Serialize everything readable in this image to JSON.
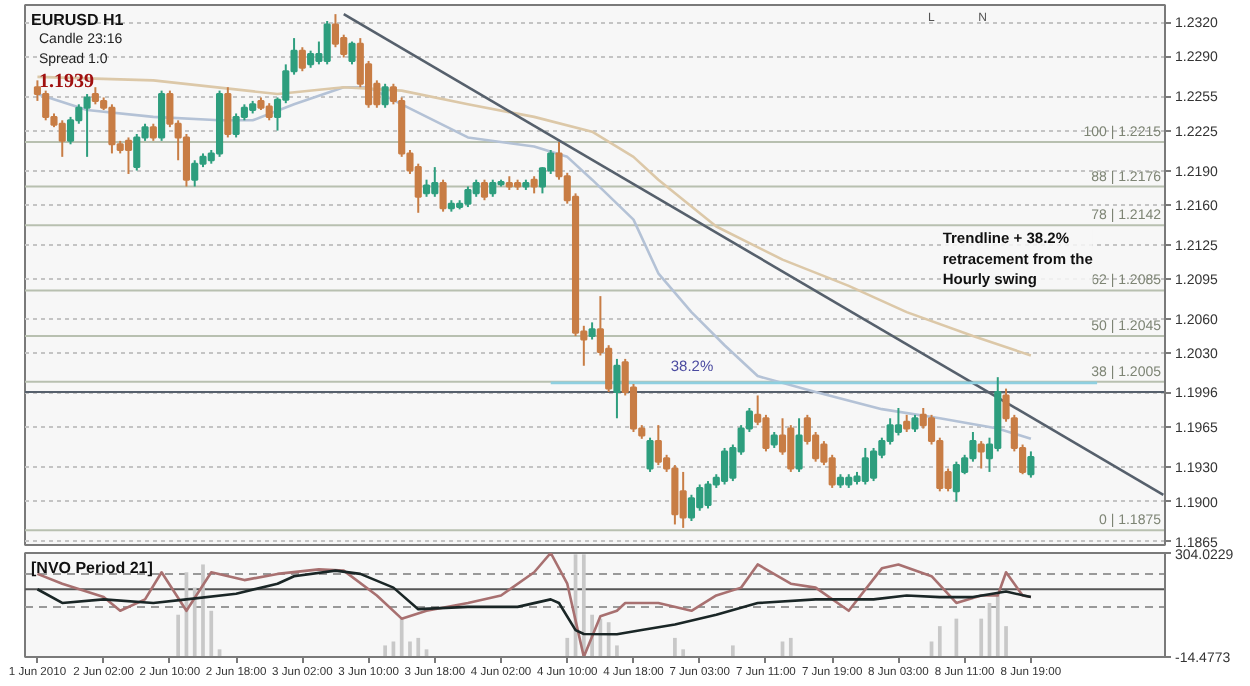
{
  "chart_data": [
    {
      "type": "candlestick",
      "title": "EURUSD H1",
      "annotations": [
        "Candle 23:16",
        "Spread 1.0",
        "1.1939",
        "L",
        "N",
        "Trendline + 38.2% retracement from the Hourly swing"
      ],
      "categories": [
        null,
        null,
        null,
        null,
        null,
        null,
        null,
        null,
        null,
        null,
        null,
        null,
        null,
        null,
        null,
        null,
        null,
        null,
        null,
        null,
        null,
        null,
        null,
        null,
        null,
        null,
        null,
        null,
        null,
        null,
        null,
        null,
        null,
        null,
        null,
        null,
        null,
        null,
        null,
        null,
        null,
        null,
        null,
        null,
        null,
        null,
        null,
        null,
        null,
        null,
        null,
        null,
        null,
        null,
        null,
        null,
        null,
        null,
        null,
        null,
        null,
        null,
        null,
        null,
        null,
        null,
        null,
        null,
        null,
        null,
        null,
        null,
        null,
        null,
        null,
        null,
        null,
        null,
        null,
        null,
        null,
        null,
        null,
        null,
        null,
        null,
        null,
        null,
        null,
        null,
        null,
        null,
        null,
        null,
        null,
        null,
        null,
        null,
        null,
        null,
        null,
        null,
        null,
        null,
        null,
        null,
        null,
        null,
        null,
        null,
        null,
        null,
        null,
        null,
        null,
        null,
        null,
        null,
        null,
        null,
        null,
        null,
        null,
        null,
        null,
        null,
        null,
        null,
        null,
        null,
        null,
        null,
        null,
        null,
        null,
        null,
        null
      ],
      "ohlc": [
        [
          1.2263,
          1.2269,
          1.2251,
          1.2257
        ],
        [
          1.2257,
          1.226,
          1.2234,
          1.2237
        ],
        [
          1.2237,
          1.224,
          1.2228,
          1.223
        ],
        [
          1.2231,
          1.2234,
          1.2202,
          1.2216
        ],
        [
          1.2216,
          1.2237,
          1.2213,
          1.2234
        ],
        [
          1.2234,
          1.2248,
          1.2231,
          1.2245
        ],
        [
          1.2245,
          1.2257,
          1.2202,
          1.2254
        ],
        [
          1.2257,
          1.2263,
          1.2248,
          1.2251
        ],
        [
          1.2251,
          1.2254,
          1.2243,
          1.2245
        ],
        [
          1.2245,
          1.2248,
          1.2205,
          1.2213
        ],
        [
          1.2213,
          1.2216,
          1.2205,
          1.2208
        ],
        [
          1.2216,
          1.2219,
          1.2187,
          1.2208
        ],
        [
          1.2193,
          1.2222,
          1.219,
          1.2219
        ],
        [
          1.2219,
          1.2231,
          1.2216,
          1.2228
        ],
        [
          1.2228,
          1.2231,
          1.2216,
          1.2219
        ],
        [
          1.2219,
          1.226,
          1.2216,
          1.2257
        ],
        [
          1.2257,
          1.226,
          1.2228,
          1.2231
        ],
        [
          1.2231,
          1.2234,
          1.2199,
          1.2219
        ],
        [
          1.2219,
          1.2222,
          1.2176,
          1.2182
        ],
        [
          1.2182,
          1.2199,
          1.2176,
          1.2196
        ],
        [
          1.2196,
          1.2205,
          1.2193,
          1.2202
        ],
        [
          1.2199,
          1.2208,
          1.2196,
          1.2205
        ],
        [
          1.2205,
          1.226,
          1.2202,
          1.2257
        ],
        [
          1.2257,
          1.2263,
          1.2219,
          1.2222
        ],
        [
          1.2222,
          1.224,
          1.2219,
          1.2237
        ],
        [
          1.2237,
          1.2248,
          1.2234,
          1.2245
        ],
        [
          1.2243,
          1.2251,
          1.224,
          1.2248
        ],
        [
          1.2251,
          1.2254,
          1.2243,
          1.2245
        ],
        [
          1.2246,
          1.2249,
          1.2234,
          1.2237
        ],
        [
          1.2237,
          1.2254,
          1.2225,
          1.2252
        ],
        [
          1.2252,
          1.2283,
          1.2249,
          1.2277
        ],
        [
          1.2277,
          1.2306,
          1.2274,
          1.2295
        ],
        [
          1.2295,
          1.2298,
          1.2277,
          1.228
        ],
        [
          1.2283,
          1.2295,
          1.228,
          1.2292
        ],
        [
          1.2286,
          1.2303,
          1.2283,
          1.2292
        ],
        [
          1.2286,
          1.2321,
          1.2283,
          1.2318
        ],
        [
          1.2318,
          1.2327,
          1.2298,
          1.2301
        ],
        [
          1.2306,
          1.2309,
          1.2289,
          1.2292
        ],
        [
          1.2286,
          1.2303,
          1.2283,
          1.2301
        ],
        [
          1.2301,
          1.2306,
          1.2263,
          1.2266
        ],
        [
          1.2283,
          1.2286,
          1.2245,
          1.2248
        ],
        [
          1.2266,
          1.2269,
          1.2245,
          1.2248
        ],
        [
          1.2248,
          1.2266,
          1.2245,
          1.2263
        ],
        [
          1.2263,
          1.2266,
          1.2248,
          1.2251
        ],
        [
          1.2251,
          1.2254,
          1.2202,
          1.2205
        ],
        [
          1.2205,
          1.2208,
          1.2187,
          1.219
        ],
        [
          1.2193,
          1.2196,
          1.2153,
          1.2167
        ],
        [
          1.217,
          1.2182,
          1.2167,
          1.2177
        ],
        [
          1.217,
          1.2193,
          1.2167,
          1.2179
        ],
        [
          1.2179,
          1.2182,
          1.2154,
          1.2157
        ],
        [
          1.2157,
          1.2164,
          1.2154,
          1.2161
        ],
        [
          1.2158,
          1.2164,
          1.2156,
          1.2161
        ],
        [
          1.2161,
          1.2176,
          1.2158,
          1.2173
        ],
        [
          1.217,
          1.2182,
          1.2167,
          1.2179
        ],
        [
          1.2179,
          1.2182,
          1.2164,
          1.2167
        ],
        [
          1.217,
          1.2182,
          1.2167,
          1.2179
        ],
        [
          1.2178,
          1.2182,
          1.2176,
          1.218
        ],
        [
          1.2179,
          1.2185,
          1.2173,
          1.2176
        ],
        [
          1.2179,
          1.2182,
          1.2173,
          1.2176
        ],
        [
          1.2176,
          1.2182,
          1.2173,
          1.2179
        ],
        [
          1.2182,
          1.2185,
          1.217,
          1.2176
        ],
        [
          1.2176,
          1.2193,
          1.217,
          1.2192
        ],
        [
          1.219,
          1.2208,
          1.2187,
          1.2205
        ],
        [
          1.2205,
          1.2215,
          1.2182,
          1.2185
        ],
        [
          1.2185,
          1.2188,
          1.2161,
          1.2164
        ],
        [
          1.2167,
          1.217,
          1.2045,
          1.2048
        ],
        [
          1.2049,
          1.2054,
          1.2019,
          1.2042
        ],
        [
          1.2045,
          1.2057,
          1.2042,
          1.2051
        ],
        [
          1.2051,
          1.208,
          1.2028,
          1.2031
        ],
        [
          1.2034,
          1.2037,
          1.1996,
          1.1999
        ],
        [
          1.1996,
          1.2025,
          1.1973,
          1.2019
        ],
        [
          1.2022,
          1.2025,
          1.1993,
          1.1996
        ],
        [
          1.2,
          1.2003,
          1.1961,
          1.1964
        ],
        [
          1.1964,
          1.1967,
          1.1955,
          1.1958
        ],
        [
          1.1929,
          1.1956,
          1.1926,
          1.1953
        ],
        [
          1.1953,
          1.1967,
          1.1932,
          1.1935
        ],
        [
          1.1938,
          1.1941,
          1.1926,
          1.1929
        ],
        [
          1.1929,
          1.1932,
          1.188,
          1.1889
        ],
        [
          1.1909,
          1.1926,
          1.1877,
          1.1886
        ],
        [
          1.1886,
          1.1906,
          1.1883,
          1.1903
        ],
        [
          1.1895,
          1.1915,
          1.1892,
          1.1912
        ],
        [
          1.1897,
          1.1918,
          1.1894,
          1.1915
        ],
        [
          1.1915,
          1.1924,
          1.1912,
          1.1921
        ],
        [
          1.1918,
          1.1947,
          1.1915,
          1.1944
        ],
        [
          1.1921,
          1.195,
          1.1918,
          1.1947
        ],
        [
          1.1944,
          1.1967,
          1.1941,
          1.1964
        ],
        [
          1.1964,
          1.1982,
          1.1961,
          1.1979
        ],
        [
          1.1976,
          1.1993,
          1.1967,
          1.197
        ],
        [
          1.1973,
          1.1976,
          1.1944,
          1.1947
        ],
        [
          1.195,
          1.1961,
          1.1947,
          1.1958
        ],
        [
          1.1958,
          1.1973,
          1.1941,
          1.1944
        ],
        [
          1.1964,
          1.1967,
          1.1926,
          1.1929
        ],
        [
          1.1929,
          1.1973,
          1.1926,
          1.1958
        ],
        [
          1.1973,
          1.1976,
          1.195,
          1.1953
        ],
        [
          1.1958,
          1.1961,
          1.1935,
          1.1938
        ],
        [
          1.195,
          1.1953,
          1.1932,
          1.1935
        ],
        [
          1.1938,
          1.1941,
          1.1912,
          1.1915
        ],
        [
          1.1915,
          1.1924,
          1.1912,
          1.1921
        ],
        [
          1.1915,
          1.1924,
          1.1912,
          1.1921
        ],
        [
          1.1918,
          1.1926,
          1.1915,
          1.1922
        ],
        [
          1.1918,
          1.1947,
          1.1915,
          1.1938
        ],
        [
          1.1921,
          1.1947,
          1.1918,
          1.1944
        ],
        [
          1.1941,
          1.1956,
          1.1938,
          1.1953
        ],
        [
          1.1953,
          1.1973,
          1.195,
          1.1967
        ],
        [
          1.1961,
          1.1982,
          1.1958,
          1.1967
        ],
        [
          1.197,
          1.1976,
          1.1961,
          1.1964
        ],
        [
          1.1964,
          1.1976,
          1.1961,
          1.1973
        ],
        [
          1.1976,
          1.1982,
          1.1964,
          1.1967
        ],
        [
          1.1973,
          1.1976,
          1.195,
          1.1953
        ],
        [
          1.1953,
          1.1956,
          1.1909,
          1.1912
        ],
        [
          1.1926,
          1.1929,
          1.1909,
          1.1912
        ],
        [
          1.1909,
          1.1935,
          1.19,
          1.1932
        ],
        [
          1.1926,
          1.1941,
          1.1924,
          1.1938
        ],
        [
          1.1938,
          1.1961,
          1.1935,
          1.1953
        ],
        [
          1.195,
          1.1953,
          1.1929,
          1.1944
        ],
        [
          1.1938,
          1.1956,
          1.1926,
          1.195
        ],
        [
          1.1947,
          1.2009,
          1.1944,
          1.1996
        ],
        [
          1.1993,
          1.1999,
          1.197,
          1.1973
        ],
        [
          1.1973,
          1.1976,
          1.1944,
          1.1947
        ],
        [
          1.1947,
          1.195,
          1.1924,
          1.1926
        ],
        [
          1.1924,
          1.1944,
          1.1921,
          1.1939
        ],
        null,
        null,
        null,
        null,
        null,
        null,
        null,
        null,
        null,
        null,
        null,
        null,
        null,
        null,
        null,
        null
      ],
      "colors": [
        "#c87d45",
        "#c87d45",
        "#c87d45",
        "#c87d45",
        "#2e9e7e",
        "#2e9e7e",
        "#2e9e7e",
        "#c87d45",
        "#c87d45",
        "#c87d45",
        "#c87d45",
        "#c87d45",
        "#2e9e7e",
        "#2e9e7e",
        "#c87d45",
        "#2e9e7e",
        "#c87d45",
        "#c87d45",
        "#c87d45",
        "#2e9e7e",
        "#2e9e7e",
        "#2e9e7e",
        "#2e9e7e",
        "#c87d45",
        "#2e9e7e",
        "#2e9e7e",
        "#2e9e7e",
        "#c87d45",
        "#c87d45",
        "#2e9e7e",
        "#2e9e7e",
        "#2e9e7e",
        "#c87d45",
        "#2e9e7e",
        "#2e9e7e",
        "#2e9e7e",
        "#c87d45",
        "#c87d45",
        "#2e9e7e",
        "#c87d45",
        "#c87d45",
        "#c87d45",
        "#2e9e7e",
        "#c87d45",
        "#c87d45",
        "#c87d45",
        "#c87d45",
        "#2e9e7e",
        "#2e9e7e",
        "#c87d45",
        "#2e9e7e",
        "#2e9e7e",
        "#2e9e7e",
        "#2e9e7e",
        "#c87d45",
        "#2e9e7e",
        "#2e9e7e",
        "#c87d45",
        "#c87d45",
        "#2e9e7e",
        "#c87d45",
        "#2e9e7e",
        "#2e9e7e",
        "#c87d45",
        "#c87d45",
        "#c87d45",
        "#c87d45",
        "#2e9e7e",
        "#c87d45",
        "#c87d45",
        "#2e9e7e",
        "#c87d45",
        "#c87d45",
        "#c87d45",
        "#2e9e7e",
        "#c87d45",
        "#c87d45",
        "#c87d45",
        "#c87d45",
        "#2e9e7e",
        "#2e9e7e",
        "#2e9e7e",
        "#2e9e7e",
        "#2e9e7e",
        "#2e9e7e",
        "#2e9e7e",
        "#2e9e7e",
        "#c87d45",
        "#c87d45",
        "#2e9e7e",
        "#c87d45",
        "#c87d45",
        "#2e9e7e",
        "#c87d45",
        "#c87d45",
        "#c87d45",
        "#c87d45",
        "#2e9e7e",
        "#2e9e7e",
        "#2e9e7e",
        "#2e9e7e",
        "#2e9e7e",
        "#2e9e7e",
        "#2e9e7e",
        "#2e9e7e",
        "#c87d45",
        "#2e9e7e",
        "#c87d45",
        "#c87d45",
        "#c87d45",
        "#c87d45",
        "#2e9e7e",
        "#2e9e7e",
        "#2e9e7e",
        "#c87d45",
        "#2e9e7e",
        "#2e9e7e",
        "#c87d45",
        "#c87d45",
        "#c87d45",
        "#2e9e7e",
        null,
        null,
        null,
        null,
        null,
        null,
        null,
        null,
        null,
        null,
        null,
        null,
        null,
        null,
        null,
        null
      ],
      "series": [
        {
          "type": "line",
          "color": "#b4c2d6",
          "values": [
            1.2257,
            null,
            null,
            null,
            null,
            null,
            1.2243,
            null,
            null,
            null,
            null,
            null,
            null,
            null,
            1.2237,
            null,
            null,
            null,
            null,
            null,
            null,
            null,
            1.2234,
            null,
            null,
            null,
            1.2234,
            null,
            null,
            null,
            null,
            1.2248,
            null,
            null,
            null,
            null,
            null,
            1.2263,
            null,
            null,
            1.2263,
            null,
            null,
            null,
            1.2248,
            null,
            null,
            null,
            null,
            null,
            null,
            null,
            1.2219,
            null,
            null,
            null,
            null,
            null,
            null,
            null,
            1.2211,
            null,
            null,
            null,
            1.2202,
            null,
            null,
            1.2182,
            null,
            null,
            null,
            null,
            1.2147,
            null,
            null,
            1.21,
            null,
            null,
            null,
            1.2066,
            null,
            null,
            null,
            1.2037,
            null,
            null,
            null,
            1.201,
            null,
            null,
            null,
            null,
            null,
            null,
            1.1996,
            null,
            null,
            null,
            null,
            null,
            null,
            null,
            1.1981,
            null,
            null,
            null,
            null,
            null,
            null,
            1.1973,
            null,
            null,
            null,
            null,
            null,
            null,
            1.1964,
            null,
            null,
            null,
            1.1955,
            null,
            null,
            null,
            null,
            null,
            null,
            null,
            null,
            null,
            null,
            null,
            null,
            null,
            null,
            null,
            null
          ]
        },
        {
          "type": "line",
          "color": "#dcc8a8",
          "values": [
            1.2272,
            null,
            null,
            null,
            null,
            null,
            null,
            null,
            null,
            null,
            null,
            null,
            null,
            null,
            1.2269,
            null,
            null,
            null,
            null,
            null,
            null,
            null,
            null,
            null,
            null,
            null,
            null,
            null,
            null,
            1.2257,
            null,
            null,
            null,
            null,
            null,
            null,
            null,
            1.2263,
            null,
            null,
            null,
            null,
            null,
            null,
            1.226,
            null,
            null,
            null,
            null,
            null,
            null,
            null,
            1.2248,
            null,
            null,
            null,
            null,
            null,
            null,
            null,
            1.2237,
            null,
            null,
            null,
            null,
            null,
            null,
            1.2224,
            null,
            null,
            null,
            null,
            1.2202,
            null,
            null,
            1.2182,
            null,
            null,
            null,
            null,
            null,
            null,
            1.2141,
            null,
            null,
            null,
            null,
            null,
            null,
            null,
            1.2112,
            null,
            null,
            null,
            null,
            null,
            null,
            null,
            1.2089,
            null,
            null,
            null,
            null,
            null,
            null,
            1.2066,
            null,
            null,
            null,
            null,
            null,
            null,
            null,
            1.2045,
            null,
            null,
            null,
            null,
            null,
            null,
            1.2028,
            null,
            null,
            null,
            null,
            null,
            null,
            null,
            null,
            null,
            null,
            null,
            null,
            null,
            null,
            null,
            null
          ]
        },
        {
          "type": "line",
          "color": "#56606c",
          "values": [
            null,
            null,
            null,
            null,
            null,
            null,
            null,
            null,
            null,
            null,
            null,
            null,
            null,
            null,
            null,
            null,
            null,
            null,
            null,
            null,
            null,
            null,
            null,
            null,
            null,
            null,
            null,
            null,
            null,
            null,
            null,
            null,
            null,
            null,
            null,
            null,
            null,
            1.2327,
            null,
            null,
            null,
            null,
            null,
            null,
            null,
            null,
            null,
            null,
            null,
            null,
            null,
            null,
            null,
            null,
            null,
            null,
            null,
            null,
            null,
            null,
            null,
            null,
            null,
            null,
            null,
            null,
            null,
            null,
            null,
            null,
            null,
            null,
            null,
            null,
            null,
            null,
            null,
            null,
            null,
            null,
            null,
            null,
            null,
            null,
            null,
            null,
            null,
            null,
            null,
            null,
            null,
            null,
            null,
            null,
            null,
            null,
            null,
            null,
            null,
            null,
            null,
            null,
            null,
            null,
            null,
            null,
            null,
            null,
            null,
            null,
            null,
            null,
            null,
            null,
            null,
            null,
            null,
            null,
            null,
            null,
            null,
            null,
            null,
            null,
            null,
            null,
            null,
            null,
            null,
            null,
            null,
            null,
            null,
            null,
            null,
            null,
            1.1906
          ]
        },
        {
          "type": "line",
          "name": "38.2%",
          "color": "#8ecfe0",
          "values": [
            null,
            null,
            null,
            null,
            null,
            null,
            null,
            null,
            null,
            null,
            null,
            null,
            null,
            null,
            null,
            null,
            null,
            null,
            null,
            null,
            null,
            null,
            null,
            null,
            null,
            null,
            null,
            null,
            null,
            null,
            null,
            null,
            null,
            null,
            null,
            null,
            null,
            null,
            null,
            null,
            null,
            null,
            null,
            null,
            null,
            null,
            null,
            null,
            null,
            null,
            null,
            null,
            null,
            null,
            null,
            null,
            null,
            null,
            null,
            null,
            null,
            null,
            1.2004,
            null,
            null,
            null,
            null,
            null,
            null,
            null,
            null,
            null,
            null,
            null,
            null,
            null,
            null,
            null,
            null,
            null,
            null,
            null,
            null,
            null,
            null,
            null,
            null,
            null,
            null,
            null,
            null,
            null,
            null,
            null,
            null,
            null,
            null,
            null,
            null,
            null,
            null,
            null,
            null,
            null,
            null,
            null,
            null,
            null,
            null,
            null,
            null,
            null,
            null,
            null,
            null,
            null,
            null,
            null,
            null,
            null,
            null,
            null,
            null,
            null,
            null,
            null,
            null,
            null,
            1.2004,
            null,
            null,
            null,
            null,
            null,
            null,
            null,
            null
          ]
        }
      ],
      "ref_lines": [
        {
          "axis": "y",
          "value": 1.2215,
          "label": "100 | 1.2215",
          "color": "#b8c0b0"
        },
        {
          "axis": "y",
          "value": 1.2176,
          "label": "88 | 1.2176",
          "color": "#b8c0b0"
        },
        {
          "axis": "y",
          "value": 1.2142,
          "label": "78 | 1.2142",
          "color": "#b8c0b0"
        },
        {
          "axis": "y",
          "value": 1.2085,
          "label": "62 | 1.2085",
          "color": "#b8c0b0"
        },
        {
          "axis": "y",
          "value": 1.2045,
          "label": "50 | 1.2045",
          "color": "#b8c0b0"
        },
        {
          "axis": "y",
          "value": 1.2005,
          "label": "38 | 1.2005",
          "color": "#b8c0b0"
        },
        {
          "axis": "y",
          "value": 1.1875,
          "label": "0 | 1.1875",
          "color": "#b8c0b0"
        },
        {
          "axis": "y",
          "value": 1.1996,
          "color": "#56606c",
          "line_style": "solid"
        }
      ],
      "ylim": [
        1.1862,
        1.2335
      ],
      "yticks": [
        {
          "value": 1.232,
          "label": "1.2320"
        },
        {
          "value": 1.229,
          "label": "1.2290"
        },
        1.2255,
        1.2225,
        {
          "value": 1.219,
          "label": "1.2190"
        },
        {
          "value": 1.216,
          "label": "1.2160"
        },
        1.2125,
        1.2095,
        {
          "value": 1.206,
          "label": "1.2060"
        },
        {
          "value": 1.203,
          "label": "1.2030"
        },
        1.1996,
        1.1965,
        {
          "value": 1.193,
          "label": "1.1930"
        },
        {
          "value": 1.19,
          "label": "1.1900"
        },
        1.1865
      ],
      "grid": "y",
      "tick_labels": "y"
    },
    {
      "type": "line",
      "title": "[NVO Period 21]",
      "categories": [
        "1 Jun 2010",
        null,
        null,
        null,
        null,
        null,
        null,
        null,
        "2 Jun 02:00",
        null,
        null,
        null,
        null,
        null,
        null,
        null,
        "2 Jun 10:00",
        null,
        null,
        null,
        null,
        null,
        null,
        null,
        "2 Jun 18:00",
        null,
        null,
        null,
        null,
        null,
        null,
        null,
        "3 Jun 02:00",
        null,
        null,
        null,
        null,
        null,
        null,
        null,
        "3 Jun 10:00",
        null,
        null,
        null,
        null,
        null,
        null,
        null,
        "3 Jun 18:00",
        null,
        null,
        null,
        null,
        null,
        null,
        null,
        "4 Jun 02:00",
        null,
        null,
        null,
        null,
        null,
        null,
        null,
        "4 Jun 10:00",
        null,
        null,
        null,
        null,
        null,
        null,
        null,
        "4 Jun 18:00",
        null,
        null,
        null,
        null,
        null,
        null,
        null,
        "7 Jun 03:00",
        null,
        null,
        null,
        null,
        null,
        null,
        null,
        "7 Jun 11:00",
        null,
        null,
        null,
        null,
        null,
        null,
        null,
        "7 Jun 19:00",
        null,
        null,
        null,
        null,
        null,
        null,
        null,
        "8 Jun 03:00",
        null,
        null,
        null,
        null,
        null,
        null,
        null,
        "8 Jun 11:00",
        null,
        null,
        null,
        null,
        null,
        null,
        null,
        "8 Jun 19:00",
        null,
        null,
        null,
        null,
        null,
        null,
        null,
        null,
        null,
        null,
        null,
        null,
        null,
        null,
        null,
        null
      ],
      "series": [
        {
          "type": "bar",
          "color": "#c8c8c8",
          "values": [
            null,
            null,
            null,
            null,
            null,
            null,
            null,
            null,
            null,
            null,
            null,
            null,
            null,
            null,
            null,
            null,
            null,
            115,
            245,
            198,
            269,
            127,
            9,
            null,
            null,
            null,
            null,
            null,
            null,
            null,
            null,
            null,
            null,
            null,
            null,
            null,
            null,
            null,
            null,
            null,
            null,
            null,
            21,
            33,
            103,
            33,
            44,
            9,
            null,
            null,
            null,
            null,
            null,
            null,
            null,
            null,
            null,
            null,
            null,
            null,
            null,
            null,
            null,
            null,
            44,
            300,
            300,
            115,
            103,
            92,
            21,
            null,
            null,
            null,
            null,
            null,
            null,
            44,
            9,
            null,
            null,
            null,
            null,
            null,
            21,
            null,
            null,
            null,
            null,
            null,
            33,
            44,
            null,
            null,
            null,
            null,
            null,
            null,
            null,
            null,
            null,
            null,
            null,
            null,
            null,
            null,
            null,
            null,
            33,
            80,
            null,
            103,
            null,
            null,
            103,
            151,
            174,
            80,
            null,
            null,
            null,
            null,
            null,
            null,
            null,
            null,
            null,
            null,
            null,
            null,
            null,
            null,
            null,
            null,
            null,
            null,
            null
          ]
        },
        {
          "type": "line",
          "color": "#a87070",
          "values": [
            240,
            null,
            null,
            210,
            null,
            null,
            null,
            null,
            169,
            null,
            127,
            null,
            null,
            162,
            null,
            245,
            null,
            null,
            127,
            null,
            null,
            245,
            null,
            null,
            null,
            221,
            null,
            null,
            null,
            240,
            null,
            null,
            null,
            null,
            254,
            null,
            null,
            250,
            null,
            null,
            null,
            174,
            null,
            null,
            103,
            null,
            null,
            127,
            null,
            null,
            null,
            null,
            151,
            null,
            null,
            null,
            174,
            null,
            null,
            null,
            245,
            null,
            304,
            null,
            210,
            null,
            -14,
            null,
            110,
            null,
            127,
            151,
            null,
            null,
            null,
            151,
            null,
            null,
            null,
            127,
            null,
            null,
            174,
            null,
            null,
            198,
            null,
            269,
            null,
            null,
            null,
            210,
            null,
            null,
            198,
            null,
            null,
            null,
            127,
            null,
            null,
            null,
            257,
            null,
            269,
            null,
            null,
            null,
            233,
            null,
            null,
            151,
            null,
            null,
            174,
            null,
            174,
            245,
            null,
            174,
            169,
            null,
            null,
            null,
            null,
            null,
            null,
            null,
            null,
            null,
            null,
            null,
            null,
            null,
            null,
            null,
            null
          ]
        },
        {
          "type": "line",
          "color": "#1a2626",
          "values": [
            193,
            null,
            null,
            151,
            null,
            null,
            null,
            null,
            162,
            null,
            null,
            null,
            null,
            null,
            151,
            null,
            null,
            null,
            162,
            null,
            null,
            null,
            null,
            null,
            179,
            null,
            null,
            null,
            null,
            210,
            null,
            233,
            null,
            null,
            null,
            null,
            250,
            null,
            null,
            240,
            null,
            null,
            null,
            198,
            null,
            null,
            132,
            null,
            null,
            null,
            null,
            null,
            139,
            null,
            null,
            null,
            null,
            null,
            139,
            null,
            null,
            null,
            162,
            151,
            null,
            68,
            56,
            null,
            null,
            null,
            55,
            null,
            null,
            68,
            null,
            null,
            null,
            85,
            null,
            null,
            null,
            null,
            115,
            null,
            null,
            null,
            null,
            151,
            null,
            null,
            null,
            null,
            null,
            null,
            162,
            null,
            null,
            null,
            null,
            null,
            null,
            162,
            null,
            null,
            null,
            174,
            null,
            null,
            null,
            169,
            null,
            null,
            null,
            169,
            null,
            null,
            null,
            186,
            null,
            null,
            169,
            null,
            null,
            null,
            null,
            null,
            null,
            null,
            null,
            null,
            null,
            null,
            null,
            null,
            null,
            null,
            null
          ]
        }
      ],
      "ref_lines": [
        {
          "axis": "y",
          "value": 240,
          "color": "#999999",
          "line_style": "dashed"
        },
        {
          "axis": "y",
          "value": 193,
          "color": "#555555",
          "line_style": "solid"
        },
        {
          "axis": "y",
          "value": 139,
          "color": "#999999",
          "line_style": "dashed"
        }
      ],
      "ylim": [
        -14.4773,
        304.0229
      ],
      "yticks": [
        -14.4773,
        304.0229
      ]
    }
  ]
}
